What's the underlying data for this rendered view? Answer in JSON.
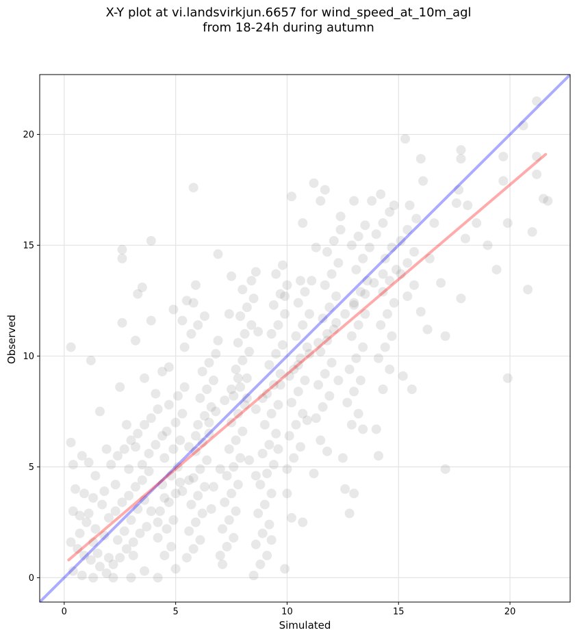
{
  "chart_data": {
    "type": "scatter",
    "title_lines": [
      "X-Y plot at vi.landsvirkjun.6657 for wind_speed_at_10m_agl",
      "from 18-24h during autumn"
    ],
    "xlabel": "Simulated",
    "ylabel": "Observed",
    "xlim": [
      -1.1,
      22.7
    ],
    "ylim": [
      -1.1,
      22.7
    ],
    "xticks": [
      0,
      5,
      10,
      15,
      20
    ],
    "yticks": [
      0,
      5,
      10,
      15,
      20
    ],
    "grid": true,
    "point_color": "#808080",
    "point_opacity": 0.18,
    "reference_line": {
      "name": "1:1",
      "color": "#0000ff",
      "x": [
        -1.1,
        22.7
      ],
      "y": [
        -1.1,
        22.7
      ]
    },
    "fit_line": {
      "color": "#ff0000",
      "x": [
        0.2,
        21.6
      ],
      "y": [
        0.8,
        19.1
      ]
    },
    "points": [
      [
        0.3,
        10.4
      ],
      [
        1.2,
        9.8
      ],
      [
        1.6,
        7.5
      ],
      [
        0.3,
        6.1
      ],
      [
        0.4,
        5.1
      ],
      [
        0.8,
        5.5
      ],
      [
        1.1,
        5.2
      ],
      [
        1.4,
        4.6
      ],
      [
        0.5,
        4.0
      ],
      [
        0.9,
        3.8
      ],
      [
        1.3,
        3.6
      ],
      [
        1.7,
        3.3
      ],
      [
        0.4,
        3.0
      ],
      [
        0.7,
        2.8
      ],
      [
        1.0,
        2.5
      ],
      [
        1.4,
        2.2
      ],
      [
        1.8,
        1.9
      ],
      [
        0.3,
        1.6
      ],
      [
        0.6,
        1.3
      ],
      [
        0.9,
        1.0
      ],
      [
        1.2,
        0.8
      ],
      [
        1.6,
        0.5
      ],
      [
        0.4,
        0.3
      ],
      [
        0.8,
        0.1
      ],
      [
        1.3,
        0.0
      ],
      [
        1.9,
        0.2
      ],
      [
        2.2,
        0.6
      ],
      [
        2.5,
        0.9
      ],
      [
        2.8,
        1.3
      ],
      [
        3.1,
        1.6
      ],
      [
        3.4,
        2.0
      ],
      [
        3.7,
        2.3
      ],
      [
        2.0,
        2.7
      ],
      [
        2.3,
        3.0
      ],
      [
        2.6,
        3.4
      ],
      [
        2.9,
        3.7
      ],
      [
        3.2,
        4.1
      ],
      [
        3.5,
        4.4
      ],
      [
        3.8,
        4.8
      ],
      [
        2.1,
        5.1
      ],
      [
        2.4,
        5.5
      ],
      [
        2.7,
        5.8
      ],
      [
        3.0,
        6.2
      ],
      [
        3.3,
        6.5
      ],
      [
        3.6,
        6.9
      ],
      [
        3.9,
        7.2
      ],
      [
        4.2,
        7.6
      ],
      [
        2.5,
        8.6
      ],
      [
        2.6,
        11.5
      ],
      [
        2.6,
        14.8
      ],
      [
        2.6,
        14.4
      ],
      [
        3.3,
        12.8
      ],
      [
        3.5,
        13.1
      ],
      [
        3.2,
        10.7
      ],
      [
        3.6,
        9.0
      ],
      [
        3.9,
        11.6
      ],
      [
        3.9,
        15.2
      ],
      [
        4.4,
        9.3
      ],
      [
        4.7,
        9.5
      ],
      [
        4.1,
        8.3
      ],
      [
        4.5,
        1.0
      ],
      [
        4.8,
        1.4
      ],
      [
        4.2,
        1.8
      ],
      [
        4.6,
        2.2
      ],
      [
        4.9,
        2.6
      ],
      [
        4.3,
        3.0
      ],
      [
        4.7,
        3.4
      ],
      [
        5.0,
        3.8
      ],
      [
        4.4,
        4.2
      ],
      [
        4.8,
        4.6
      ],
      [
        5.1,
        5.0
      ],
      [
        4.5,
        5.4
      ],
      [
        4.9,
        5.8
      ],
      [
        5.2,
        6.2
      ],
      [
        4.6,
        6.6
      ],
      [
        5.0,
        7.0
      ],
      [
        5.3,
        7.4
      ],
      [
        4.7,
        7.8
      ],
      [
        5.1,
        8.2
      ],
      [
        5.4,
        8.6
      ],
      [
        4.2,
        0.0
      ],
      [
        3.0,
        0.0
      ],
      [
        2.2,
        0.0
      ],
      [
        3.6,
        0.3
      ],
      [
        5.0,
        0.4
      ],
      [
        5.5,
        0.9
      ],
      [
        5.8,
        1.3
      ],
      [
        6.1,
        1.7
      ],
      [
        5.6,
        2.1
      ],
      [
        5.9,
        2.5
      ],
      [
        6.2,
        2.9
      ],
      [
        5.7,
        3.3
      ],
      [
        6.0,
        3.7
      ],
      [
        6.3,
        4.1
      ],
      [
        5.8,
        4.5
      ],
      [
        6.1,
        4.9
      ],
      [
        6.4,
        5.3
      ],
      [
        5.9,
        5.7
      ],
      [
        6.2,
        6.1
      ],
      [
        6.5,
        6.5
      ],
      [
        6.0,
        6.9
      ],
      [
        6.3,
        7.3
      ],
      [
        6.6,
        7.7
      ],
      [
        6.1,
        8.1
      ],
      [
        6.4,
        8.5
      ],
      [
        6.7,
        8.9
      ],
      [
        6.2,
        9.3
      ],
      [
        6.5,
        9.7
      ],
      [
        6.8,
        10.1
      ],
      [
        5.4,
        10.4
      ],
      [
        5.7,
        11.0
      ],
      [
        6.0,
        11.4
      ],
      [
        6.3,
        11.8
      ],
      [
        5.8,
        12.4
      ],
      [
        5.9,
        13.2
      ],
      [
        5.5,
        12.5
      ],
      [
        5.3,
        11.6
      ],
      [
        5.8,
        17.6
      ],
      [
        4.9,
        12.1
      ],
      [
        6.9,
        14.6
      ],
      [
        7.0,
        1.0
      ],
      [
        7.3,
        1.4
      ],
      [
        7.6,
        1.8
      ],
      [
        7.1,
        2.2
      ],
      [
        7.4,
        2.6
      ],
      [
        7.7,
        3.0
      ],
      [
        7.2,
        3.4
      ],
      [
        7.5,
        3.8
      ],
      [
        7.8,
        4.2
      ],
      [
        7.1,
        0.6
      ],
      [
        7.3,
        4.6
      ],
      [
        7.6,
        5.0
      ],
      [
        7.9,
        5.4
      ],
      [
        7.4,
        5.8
      ],
      [
        7.7,
        6.2
      ],
      [
        8.0,
        6.6
      ],
      [
        7.5,
        7.0
      ],
      [
        7.8,
        7.4
      ],
      [
        8.1,
        7.8
      ],
      [
        7.6,
        8.2
      ],
      [
        7.9,
        8.6
      ],
      [
        8.2,
        9.0
      ],
      [
        7.7,
        9.4
      ],
      [
        8.0,
        9.8
      ],
      [
        8.3,
        10.2
      ],
      [
        7.8,
        10.6
      ],
      [
        8.1,
        11.0
      ],
      [
        8.4,
        11.4
      ],
      [
        7.9,
        11.8
      ],
      [
        8.2,
        12.2
      ],
      [
        8.5,
        12.6
      ],
      [
        8.0,
        13.0
      ],
      [
        8.4,
        13.4
      ],
      [
        8.6,
        13.8
      ],
      [
        7.5,
        13.6
      ],
      [
        8.5,
        0.1
      ],
      [
        8.8,
        0.6
      ],
      [
        9.1,
        1.0
      ],
      [
        8.6,
        1.5
      ],
      [
        8.9,
        2.0
      ],
      [
        9.2,
        2.4
      ],
      [
        8.7,
        2.9
      ],
      [
        9.0,
        3.3
      ],
      [
        9.3,
        3.8
      ],
      [
        8.8,
        4.2
      ],
      [
        9.1,
        4.7
      ],
      [
        9.4,
        5.1
      ],
      [
        8.9,
        5.6
      ],
      [
        9.2,
        6.0
      ],
      [
        9.5,
        6.5
      ],
      [
        9.0,
        6.9
      ],
      [
        9.3,
        7.4
      ],
      [
        9.6,
        7.8
      ],
      [
        9.1,
        8.3
      ],
      [
        9.4,
        8.7
      ],
      [
        9.7,
        9.2
      ],
      [
        9.2,
        9.6
      ],
      [
        9.5,
        10.1
      ],
      [
        9.8,
        10.5
      ],
      [
        9.3,
        11.0
      ],
      [
        9.6,
        11.4
      ],
      [
        9.9,
        11.9
      ],
      [
        9.4,
        12.3
      ],
      [
        9.7,
        12.8
      ],
      [
        10.0,
        13.2
      ],
      [
        9.5,
        13.7
      ],
      [
        9.8,
        14.1
      ],
      [
        9.9,
        0.4
      ],
      [
        9.3,
        1.7
      ],
      [
        10.0,
        4.9
      ],
      [
        10.0,
        3.8
      ],
      [
        10.2,
        2.7
      ],
      [
        10.7,
        2.5
      ],
      [
        10.3,
        5.4
      ],
      [
        10.6,
        5.9
      ],
      [
        10.1,
        6.4
      ],
      [
        10.4,
        6.9
      ],
      [
        10.7,
        7.4
      ],
      [
        10.2,
        7.9
      ],
      [
        10.5,
        8.4
      ],
      [
        10.8,
        8.9
      ],
      [
        10.3,
        9.4
      ],
      [
        10.6,
        9.9
      ],
      [
        10.9,
        10.4
      ],
      [
        10.4,
        10.9
      ],
      [
        10.7,
        11.4
      ],
      [
        11.0,
        11.9
      ],
      [
        10.5,
        12.4
      ],
      [
        10.8,
        12.9
      ],
      [
        11.1,
        13.4
      ],
      [
        10.2,
        17.2
      ],
      [
        10.7,
        16.0
      ],
      [
        11.2,
        17.8
      ],
      [
        11.5,
        17.0
      ],
      [
        11.7,
        17.5
      ],
      [
        11.2,
        4.7
      ],
      [
        11.5,
        6.2
      ],
      [
        11.8,
        5.7
      ],
      [
        11.3,
        7.2
      ],
      [
        11.6,
        7.7
      ],
      [
        11.9,
        8.2
      ],
      [
        11.4,
        8.7
      ],
      [
        11.7,
        9.2
      ],
      [
        12.0,
        9.7
      ],
      [
        11.5,
        10.2
      ],
      [
        11.8,
        10.7
      ],
      [
        12.1,
        11.2
      ],
      [
        11.6,
        11.7
      ],
      [
        11.9,
        12.2
      ],
      [
        12.2,
        12.7
      ],
      [
        11.7,
        13.2
      ],
      [
        12.0,
        13.7
      ],
      [
        12.3,
        14.2
      ],
      [
        11.8,
        14.7
      ],
      [
        12.1,
        15.2
      ],
      [
        12.4,
        15.7
      ],
      [
        12.4,
        16.3
      ],
      [
        12.5,
        5.4
      ],
      [
        12.6,
        4.0
      ],
      [
        12.8,
        2.9
      ],
      [
        13.0,
        3.8
      ],
      [
        12.9,
        6.9
      ],
      [
        13.2,
        7.4
      ],
      [
        12.7,
        7.9
      ],
      [
        13.0,
        8.4
      ],
      [
        13.3,
        8.9
      ],
      [
        12.8,
        9.4
      ],
      [
        13.1,
        9.9
      ],
      [
        13.4,
        10.4
      ],
      [
        12.9,
        10.9
      ],
      [
        13.2,
        11.4
      ],
      [
        13.5,
        11.9
      ],
      [
        13.0,
        12.4
      ],
      [
        13.3,
        12.9
      ],
      [
        13.6,
        13.4
      ],
      [
        13.1,
        13.9
      ],
      [
        13.4,
        14.4
      ],
      [
        13.7,
        14.9
      ],
      [
        13.2,
        15.4
      ],
      [
        13.5,
        15.9
      ],
      [
        13.0,
        17.0
      ],
      [
        13.4,
        6.7
      ],
      [
        14.1,
        5.5
      ],
      [
        14.0,
        6.7
      ],
      [
        14.3,
        8.5
      ],
      [
        14.6,
        9.4
      ],
      [
        14.1,
        9.9
      ],
      [
        14.4,
        10.4
      ],
      [
        14.7,
        10.9
      ],
      [
        14.2,
        11.4
      ],
      [
        14.5,
        11.9
      ],
      [
        14.8,
        12.4
      ],
      [
        14.3,
        12.9
      ],
      [
        14.6,
        13.4
      ],
      [
        14.9,
        13.9
      ],
      [
        14.4,
        14.4
      ],
      [
        14.7,
        14.9
      ],
      [
        14.0,
        15.5
      ],
      [
        14.3,
        16.0
      ],
      [
        14.6,
        16.5
      ],
      [
        14.2,
        17.3
      ],
      [
        13.8,
        17.0
      ],
      [
        14.8,
        16.8
      ],
      [
        15.3,
        19.8
      ],
      [
        15.2,
        9.1
      ],
      [
        15.6,
        8.5
      ],
      [
        15.4,
        12.7
      ],
      [
        15.7,
        13.2
      ],
      [
        15.1,
        13.7
      ],
      [
        15.4,
        14.2
      ],
      [
        15.7,
        14.7
      ],
      [
        15.1,
        15.2
      ],
      [
        15.4,
        15.7
      ],
      [
        15.8,
        16.2
      ],
      [
        15.5,
        16.8
      ],
      [
        16.1,
        17.9
      ],
      [
        16.0,
        18.9
      ],
      [
        16.3,
        11.2
      ],
      [
        16.0,
        12.0
      ],
      [
        16.4,
        14.4
      ],
      [
        16.6,
        16.0
      ],
      [
        16.9,
        13.3
      ],
      [
        17.1,
        10.9
      ],
      [
        17.1,
        4.9
      ],
      [
        17.6,
        16.9
      ],
      [
        17.7,
        17.5
      ],
      [
        17.8,
        18.9
      ],
      [
        17.8,
        19.3
      ],
      [
        17.8,
        12.6
      ],
      [
        18.0,
        15.3
      ],
      [
        18.1,
        16.8
      ],
      [
        18.5,
        16.0
      ],
      [
        19.0,
        15.0
      ],
      [
        19.4,
        13.9
      ],
      [
        19.7,
        17.9
      ],
      [
        19.7,
        19.0
      ],
      [
        19.9,
        16.0
      ],
      [
        19.9,
        9.0
      ],
      [
        20.6,
        20.4
      ],
      [
        20.8,
        13.0
      ],
      [
        21.0,
        15.6
      ],
      [
        21.2,
        18.2
      ],
      [
        21.2,
        19.0
      ],
      [
        21.2,
        21.5
      ],
      [
        21.5,
        17.1
      ],
      [
        21.7,
        17.0
      ],
      [
        1.1,
        2.9
      ],
      [
        1.5,
        1.1
      ],
      [
        2.0,
        0.9
      ],
      [
        2.4,
        1.7
      ],
      [
        2.7,
        2.1
      ],
      [
        3.0,
        2.6
      ],
      [
        3.3,
        3.1
      ],
      [
        3.6,
        3.5
      ],
      [
        3.9,
        3.0
      ],
      [
        4.2,
        2.5
      ],
      [
        4.5,
        3.6
      ],
      [
        3.5,
        5.1
      ],
      [
        3.8,
        5.6
      ],
      [
        4.1,
        6.0
      ],
      [
        4.4,
        6.4
      ],
      [
        5.6,
        4.4
      ],
      [
        5.3,
        3.9
      ],
      [
        5.6,
        5.9
      ],
      [
        5.9,
        6.4
      ],
      [
        6.5,
        7.0
      ],
      [
        6.8,
        7.5
      ],
      [
        7.2,
        8.0
      ],
      [
        7.5,
        8.5
      ],
      [
        7.8,
        9.0
      ],
      [
        8.2,
        8.1
      ],
      [
        8.6,
        7.6
      ],
      [
        8.9,
        8.1
      ],
      [
        9.7,
        8.7
      ],
      [
        10.1,
        9.1
      ],
      [
        10.5,
        9.6
      ],
      [
        11.0,
        10.1
      ],
      [
        11.4,
        10.6
      ],
      [
        11.8,
        11.0
      ],
      [
        12.2,
        11.5
      ],
      [
        12.6,
        11.9
      ],
      [
        13.0,
        12.3
      ],
      [
        13.5,
        12.8
      ],
      [
        13.9,
        13.3
      ],
      [
        14.3,
        13.7
      ],
      [
        2.3,
        4.2
      ],
      [
        1.8,
        3.9
      ],
      [
        2.9,
        4.9
      ],
      [
        3.2,
        5.9
      ],
      [
        5.2,
        4.3
      ],
      [
        6.7,
        4.1
      ],
      [
        7.0,
        4.9
      ],
      [
        6.6,
        3.1
      ],
      [
        8.3,
        5.3
      ],
      [
        8.6,
        4.6
      ],
      [
        9.6,
        5.8
      ],
      [
        10.9,
        7.1
      ],
      [
        12.3,
        8.9
      ],
      [
        6.9,
        10.7
      ],
      [
        7.4,
        11.9
      ],
      [
        8.7,
        11.1
      ],
      [
        9.9,
        12.7
      ],
      [
        10.6,
        13.4
      ],
      [
        11.3,
        14.9
      ],
      [
        12.9,
        15.0
      ],
      [
        1.9,
        5.8
      ],
      [
        2.8,
        6.9
      ],
      [
        0.7,
        2.0
      ],
      [
        1.3,
        1.6
      ],
      [
        3.1,
        1.0
      ]
    ]
  }
}
